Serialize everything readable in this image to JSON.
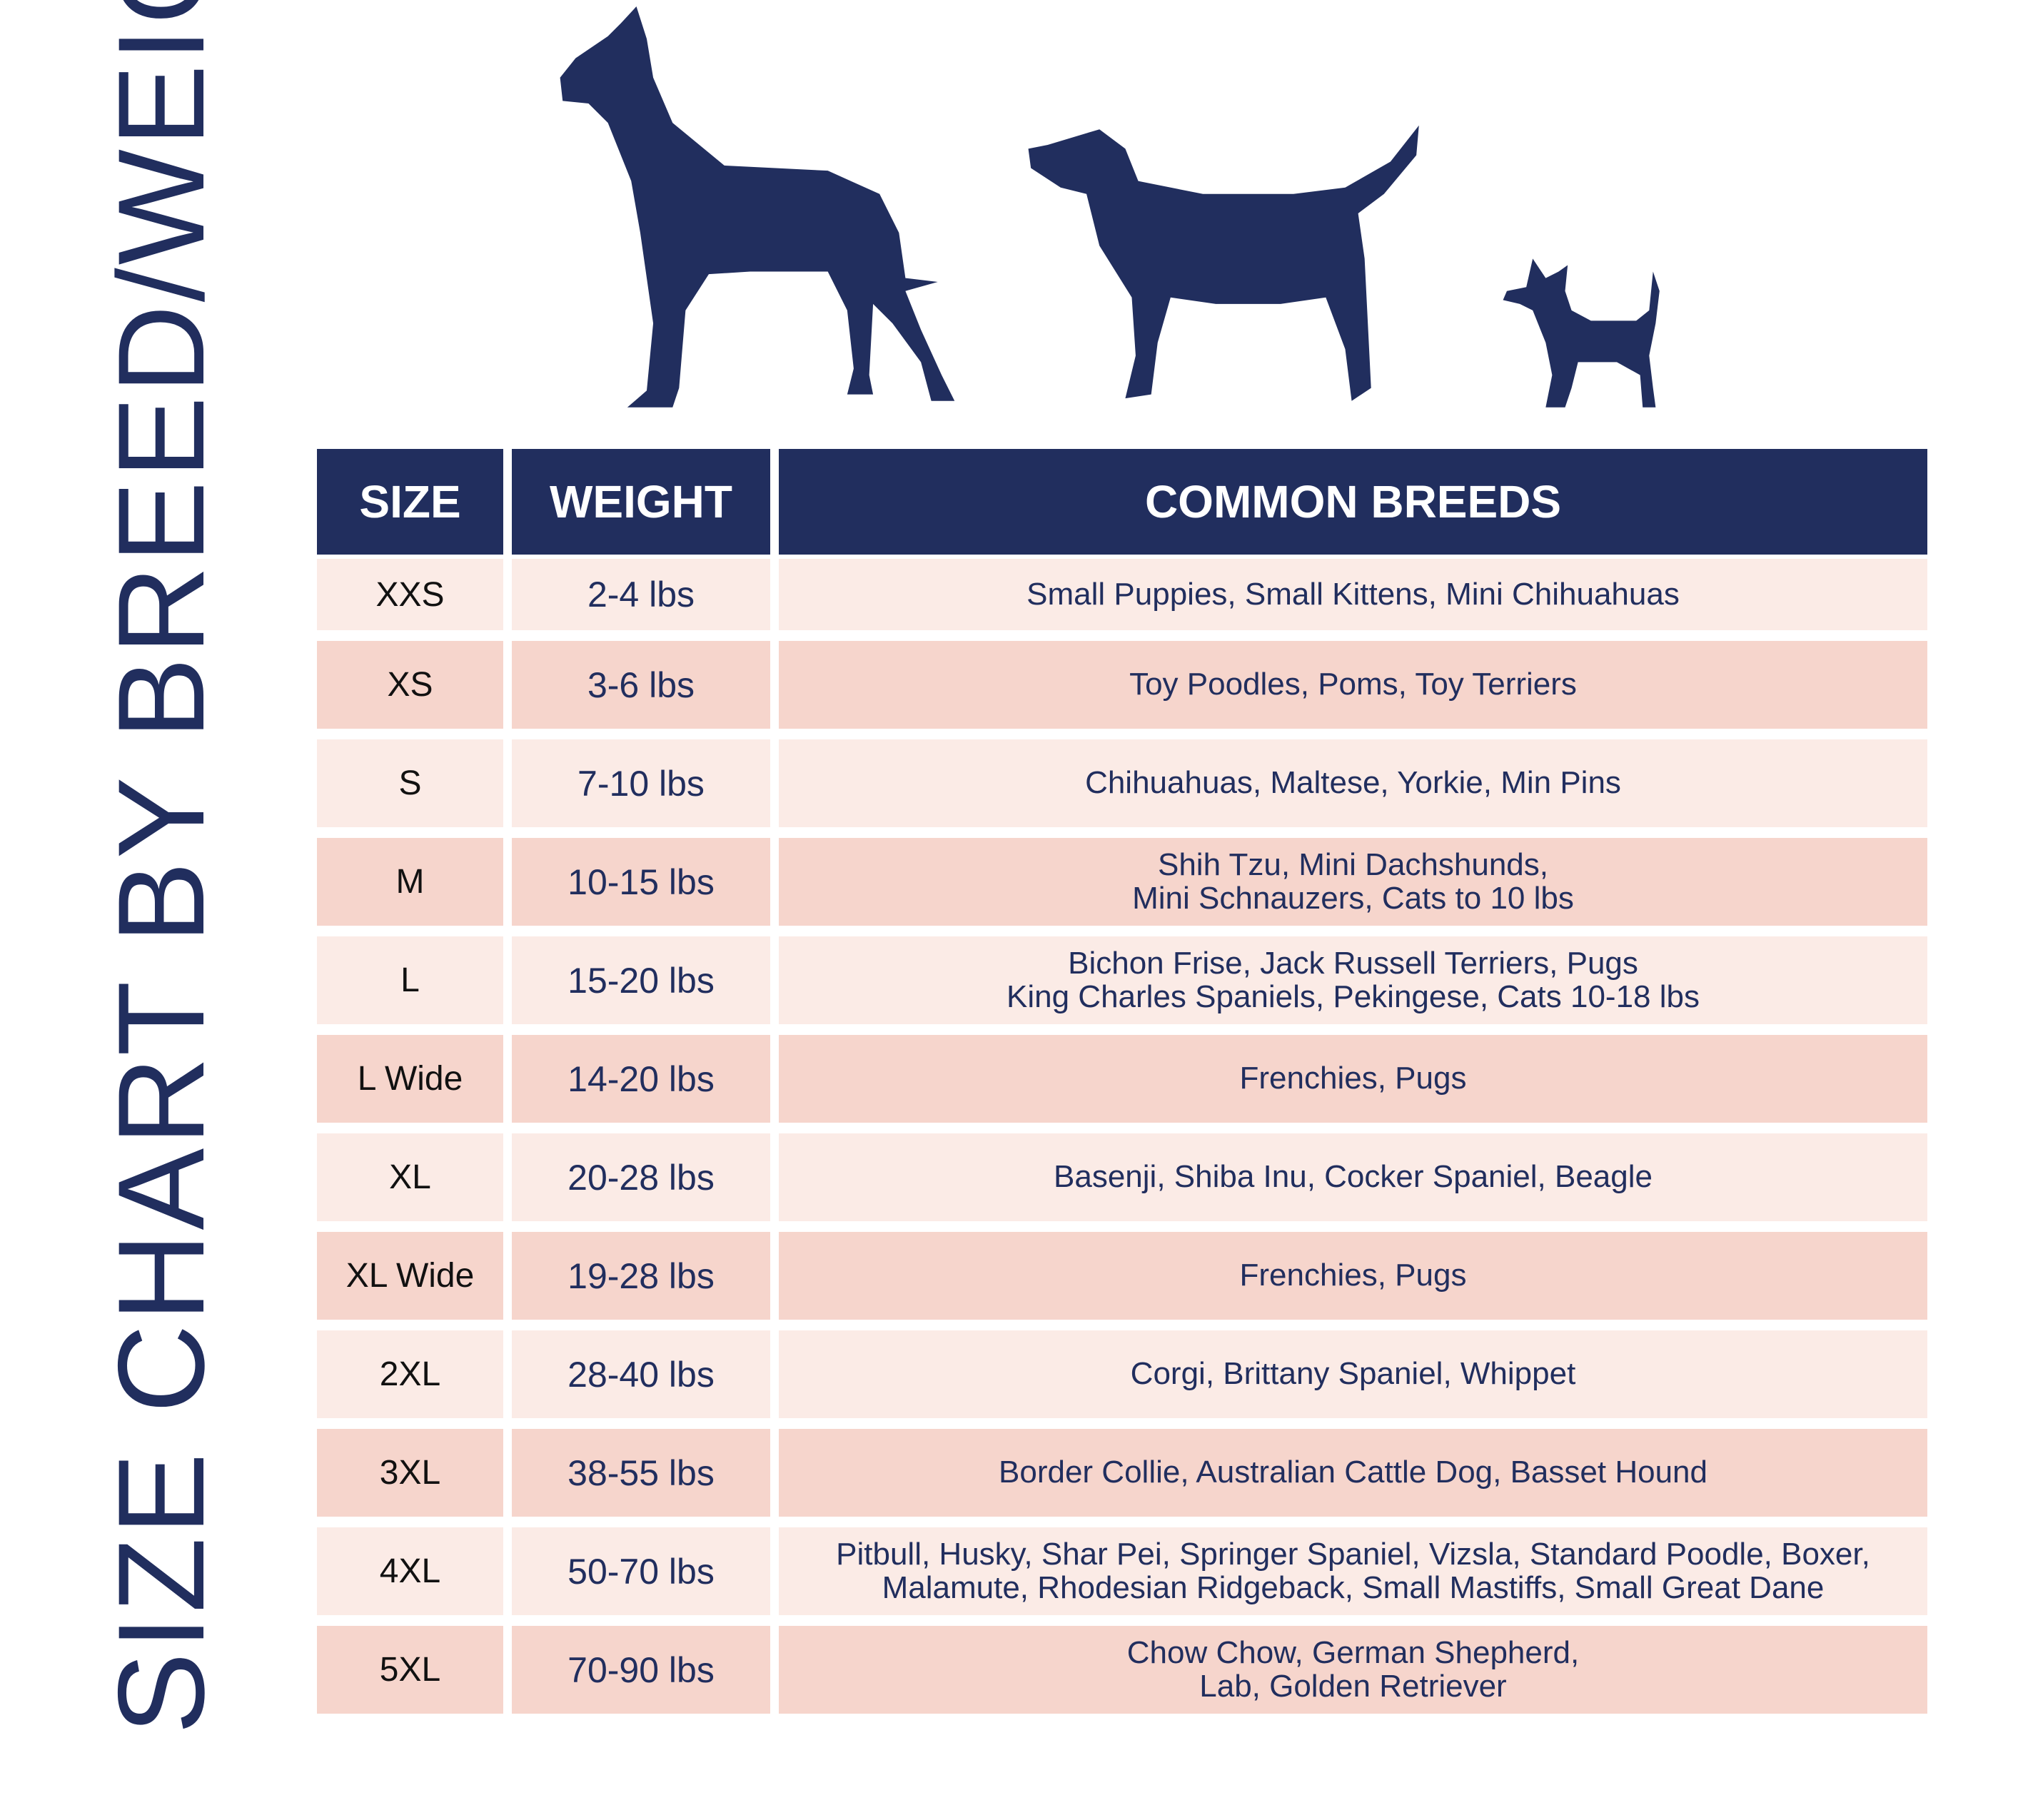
{
  "title": "SIZE CHART BY BREED/WEIGHT",
  "colors": {
    "navy": "#212e5e",
    "row_light": "#fbebe6",
    "row_dark": "#f6d5cc"
  },
  "header": {
    "size": "SIZE",
    "weight": "WEIGHT",
    "breeds": "COMMON BREEDS"
  },
  "rows": [
    {
      "size": "XXS",
      "weight": "2-4 lbs",
      "breeds": "Small Puppies, Small Kittens, Mini Chihuahuas"
    },
    {
      "size": "XS",
      "weight": "3-6 lbs",
      "breeds": "Toy Poodles, Poms, Toy Terriers"
    },
    {
      "size": "S",
      "weight": "7-10 lbs",
      "breeds": "Chihuahuas, Maltese, Yorkie, Min Pins"
    },
    {
      "size": "M",
      "weight": "10-15 lbs",
      "breeds": "Shih Tzu, Mini Dachshunds,\nMini Schnauzers, Cats to 10 lbs"
    },
    {
      "size": "L",
      "weight": "15-20 lbs",
      "breeds": "Bichon Frise, Jack Russell Terriers,  Pugs\nKing Charles Spaniels, Pekingese, Cats 10-18 lbs"
    },
    {
      "size": "L Wide",
      "weight": "14-20 lbs",
      "breeds": "Frenchies, Pugs"
    },
    {
      "size": "XL",
      "weight": "20-28 lbs",
      "breeds": "Basenji, Shiba Inu, Cocker Spaniel, Beagle"
    },
    {
      "size": "XL Wide",
      "weight": "19-28 lbs",
      "breeds": "Frenchies, Pugs"
    },
    {
      "size": "2XL",
      "weight": "28-40 lbs",
      "breeds": "Corgi, Brittany Spaniel, Whippet"
    },
    {
      "size": "3XL",
      "weight": "38-55 lbs",
      "breeds": "Border Collie, Australian Cattle Dog, Basset Hound"
    },
    {
      "size": "4XL",
      "weight": "50-70 lbs",
      "breeds": "Pitbull, Husky, Shar Pei, Springer Spaniel, Vizsla, Standard Poodle, Boxer,\nMalamute, Rhodesian Ridgeback, Small Mastiffs, Small Great Dane"
    },
    {
      "size": "5XL",
      "weight": "70-90 lbs",
      "breeds": "Chow Chow, German Shepherd,\nLab, Golden Retriever"
    }
  ]
}
